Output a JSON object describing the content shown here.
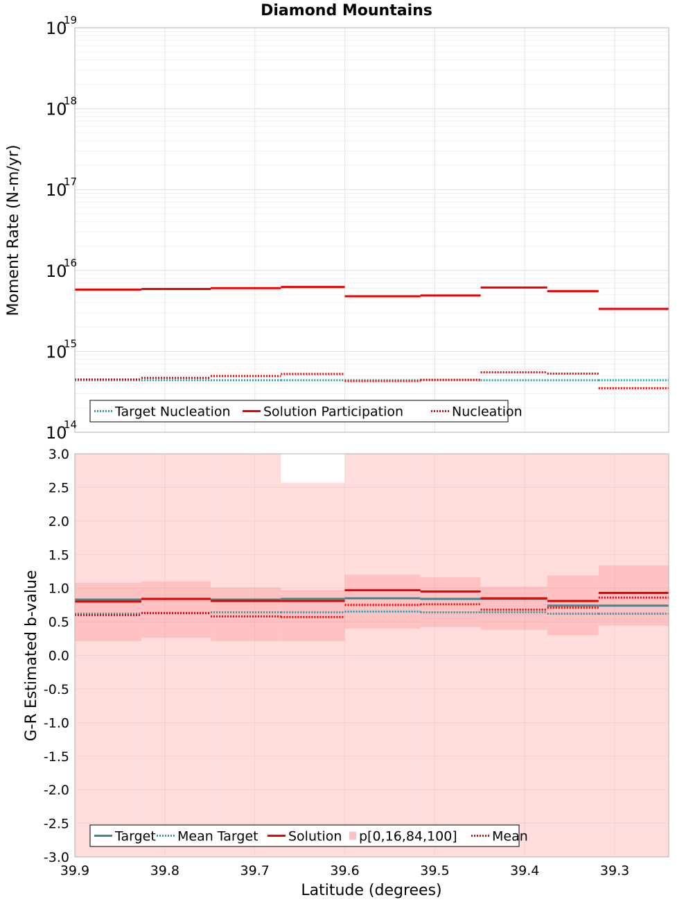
{
  "title": "Diamond Mountains",
  "xlabel": "Latitude (degrees)",
  "colors": {
    "target": "#17a2b8",
    "target_b": "#3a8a8f",
    "solution": "#ee0000",
    "band_outer": "#ffdddd",
    "band_inner": "#ffc2c2",
    "grid": "#e6e6e6"
  },
  "chart_data": [
    {
      "type": "line",
      "ylabel": "Moment Rate (N-m/yr)",
      "yscale": "log",
      "ylim": [
        100000000000000.0,
        1e+19
      ],
      "ytick_base": "10",
      "ytick_exponents": [
        "14",
        "15",
        "16",
        "17",
        "18",
        "19"
      ],
      "xlim": [
        39.9,
        39.24
      ],
      "xticks": [
        "39.9",
        "39.8",
        "39.7",
        "39.6",
        "39.5",
        "39.4",
        "39.3"
      ],
      "bins": [
        [
          39.9,
          39.826
        ],
        [
          39.826,
          39.749
        ],
        [
          39.749,
          39.671
        ],
        [
          39.671,
          39.6
        ],
        [
          39.6,
          39.516
        ],
        [
          39.516,
          39.449
        ],
        [
          39.449,
          39.375
        ],
        [
          39.375,
          39.318
        ],
        [
          39.318,
          39.24
        ]
      ],
      "series": [
        {
          "name": "Target Nucleation",
          "style": "dotted",
          "color": "#17a2b8",
          "values": [
            440000000000000.0,
            440000000000000.0,
            440000000000000.0,
            440000000000000.0,
            440000000000000.0,
            440000000000000.0,
            440000000000000.0,
            440000000000000.0,
            440000000000000.0
          ]
        },
        {
          "name": "Solution Participation",
          "style": "solid",
          "color": "#ee0000",
          "values": [
            5800000000000000.0,
            5900000000000000.0,
            6050000000000000.0,
            6250000000000000.0,
            4800000000000000.0,
            4900000000000000.0,
            6150000000000000.0,
            5550000000000000.0,
            3350000000000000.0
          ]
        },
        {
          "name": "Nucleation",
          "style": "dotted",
          "color": "#ee0000",
          "values": [
            450000000000000.0,
            470000000000000.0,
            495000000000000.0,
            525000000000000.0,
            430000000000000.0,
            445000000000000.0,
            550000000000000.0,
            530000000000000.0,
            350000000000000.0
          ]
        }
      ],
      "legend": [
        "Target Nucleation",
        "Solution Participation",
        "Nucleation"
      ],
      "legend_position": "lower-left"
    },
    {
      "type": "line",
      "ylabel": "G-R Estimated b-value",
      "ylim": [
        -3.0,
        3.0
      ],
      "yticks": [
        "3.0",
        "2.5",
        "2.0",
        "1.5",
        "1.0",
        "0.5",
        "0.0",
        "-0.5",
        "-1.0",
        "-1.5",
        "-2.0",
        "-2.5",
        "-3.0"
      ],
      "xlim": [
        39.9,
        39.24
      ],
      "xticks": [
        "39.9",
        "39.8",
        "39.7",
        "39.6",
        "39.5",
        "39.4",
        "39.3"
      ],
      "bins": [
        [
          39.9,
          39.826
        ],
        [
          39.826,
          39.749
        ],
        [
          39.749,
          39.671
        ],
        [
          39.671,
          39.6
        ],
        [
          39.6,
          39.516
        ],
        [
          39.516,
          39.449
        ],
        [
          39.449,
          39.375
        ],
        [
          39.375,
          39.318
        ],
        [
          39.318,
          39.24
        ]
      ],
      "series": [
        {
          "name": "Target",
          "style": "solid",
          "color": "#3a8a8f",
          "values": [
            0.83,
            0.84,
            0.83,
            0.84,
            0.85,
            0.84,
            0.84,
            0.74,
            0.74
          ]
        },
        {
          "name": "Mean Target",
          "style": "dotted",
          "color": "#17a2b8",
          "values": [
            0.62,
            0.63,
            0.64,
            0.64,
            0.65,
            0.64,
            0.64,
            0.62,
            0.62
          ]
        },
        {
          "name": "Solution",
          "style": "solid",
          "color": "#ee0000",
          "values": [
            0.8,
            0.84,
            0.81,
            0.81,
            0.97,
            0.95,
            0.85,
            0.81,
            0.93
          ]
        },
        {
          "name": "Mean",
          "style": "dotted",
          "color": "#ee0000",
          "values": [
            0.6,
            0.63,
            0.58,
            0.57,
            0.75,
            0.76,
            0.68,
            0.71,
            0.86
          ]
        }
      ],
      "bands": {
        "name": "p[0,16,84,100]",
        "p0": [
          -3.0,
          -3.0,
          -3.0,
          -3.0,
          -3.0,
          -3.0,
          -3.0,
          -3.0,
          -3.0
        ],
        "p16": [
          0.21,
          0.26,
          0.21,
          0.21,
          0.4,
          0.42,
          0.38,
          0.3,
          0.44
        ],
        "p84": [
          1.08,
          1.1,
          1.01,
          0.97,
          1.2,
          1.16,
          1.02,
          1.19,
          1.34
        ],
        "p100": [
          3.0,
          3.0,
          3.0,
          2.57,
          3.0,
          3.0,
          3.0,
          3.0,
          3.0
        ]
      },
      "legend": [
        "Target",
        "Mean Target",
        "Solution",
        "p[0,16,84,100]",
        "Mean"
      ],
      "legend_position": "lower-left"
    }
  ]
}
